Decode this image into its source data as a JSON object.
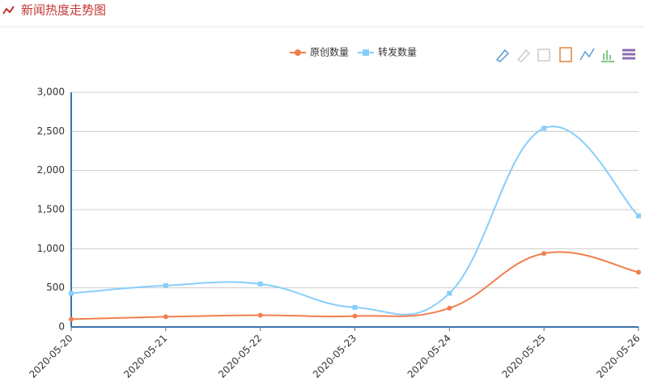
{
  "header": {
    "title": "新闻热度走势图"
  },
  "chart_data": {
    "type": "line",
    "smooth": true,
    "grid": true,
    "categories": [
      "2020-05-20",
      "2020-05-21",
      "2020-05-22",
      "2020-05-23",
      "2020-05-24",
      "2020-05-25",
      "2020-05-26"
    ],
    "series": [
      {
        "name": "原创数量",
        "color": "#f07f4e",
        "marker": "circle",
        "values": [
          100,
          130,
          150,
          140,
          240,
          940,
          700
        ]
      },
      {
        "name": "转发数量",
        "color": "#87cefa",
        "marker": "square",
        "values": [
          430,
          530,
          550,
          250,
          430,
          2540,
          1420
        ]
      }
    ],
    "ylim": [
      0,
      3000
    ],
    "yticks": [
      0,
      500,
      {
        "value": 1000,
        "label": "1,000"
      },
      {
        "value": 1500,
        "label": "1,500"
      },
      {
        "value": 2000,
        "label": "2,000"
      },
      {
        "value": 2500,
        "label": "2,500"
      },
      {
        "value": 3000,
        "label": "3,000"
      }
    ]
  }
}
